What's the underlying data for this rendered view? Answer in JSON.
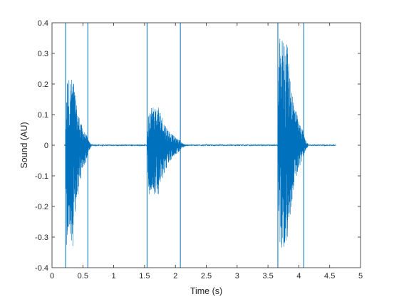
{
  "chart_data": {
    "type": "line",
    "title": "",
    "xlabel": "Time (s)",
    "ylabel": "Sound (AU)",
    "xlim": [
      0,
      5
    ],
    "ylim": [
      -0.4,
      0.4
    ],
    "xticks": [
      "0",
      "0.5",
      "1",
      "1.5",
      "2",
      "2.5",
      "3",
      "3.5",
      "4",
      "4.5",
      "5"
    ],
    "yticks": [
      "-0.4",
      "-0.3",
      "-0.2",
      "-0.1",
      "0",
      "0.1",
      "0.2",
      "0.3",
      "0.4"
    ],
    "grid": false,
    "legend": "none",
    "series_color": "#0072BD",
    "signal_time_range": [
      0.2,
      4.6
    ],
    "bursts": [
      {
        "onset": 0.22,
        "offset": 0.58,
        "peak_positive": 0.22,
        "peak_negative": -0.33
      },
      {
        "onset": 1.54,
        "offset": 2.08,
        "peak_positive": 0.13,
        "peak_negative": -0.16
      },
      {
        "onset": 3.66,
        "offset": 4.08,
        "peak_positive": 0.35,
        "peak_negative": -0.34
      }
    ],
    "vertical_markers": [
      0.22,
      0.58,
      1.54,
      2.08,
      3.66,
      4.08
    ]
  }
}
